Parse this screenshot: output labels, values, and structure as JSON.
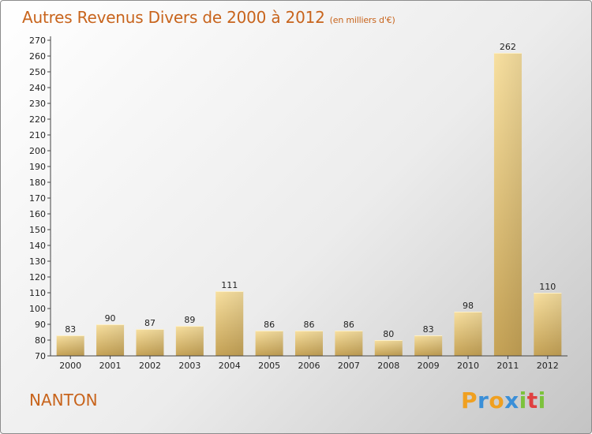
{
  "title": "Autres Revenus Divers de 2000 à 2012",
  "subtitle": "(en milliers d'€)",
  "commune": "NANTON",
  "logo": {
    "letters": [
      "P",
      "r",
      "o",
      "x",
      "i",
      "t",
      "i"
    ],
    "colors": [
      "#f0a020",
      "#3a8fd8",
      "#f0a020",
      "#3a8fd8",
      "#7cc23c",
      "#e04040",
      "#7cc23c"
    ]
  },
  "colors": {
    "title": "#c8641c",
    "bar_light": "#f7dc98",
    "bar_dark": "#c8a458",
    "axis": "#444444",
    "grid": "#d8d8d8"
  },
  "chart_data": {
    "type": "bar",
    "categories": [
      "2000",
      "2001",
      "2002",
      "2003",
      "2004",
      "2005",
      "2006",
      "2007",
      "2008",
      "2009",
      "2010",
      "2011",
      "2012"
    ],
    "values": [
      83,
      90,
      87,
      89,
      111,
      86,
      86,
      86,
      80,
      83,
      98,
      262,
      110
    ],
    "data_labels": [
      "83",
      "90",
      "87",
      "89",
      "111",
      "86",
      "86",
      "86",
      "80",
      "83",
      "98",
      "262",
      "110"
    ],
    "y_ticks": [
      70,
      80,
      90,
      100,
      110,
      120,
      130,
      140,
      150,
      160,
      170,
      180,
      190,
      200,
      210,
      220,
      230,
      240,
      250,
      260,
      270
    ],
    "ylim": [
      70,
      270
    ],
    "grid": false,
    "title": "Autres Revenus Divers de 2000 à 2012",
    "xlabel": "",
    "ylabel": ""
  }
}
